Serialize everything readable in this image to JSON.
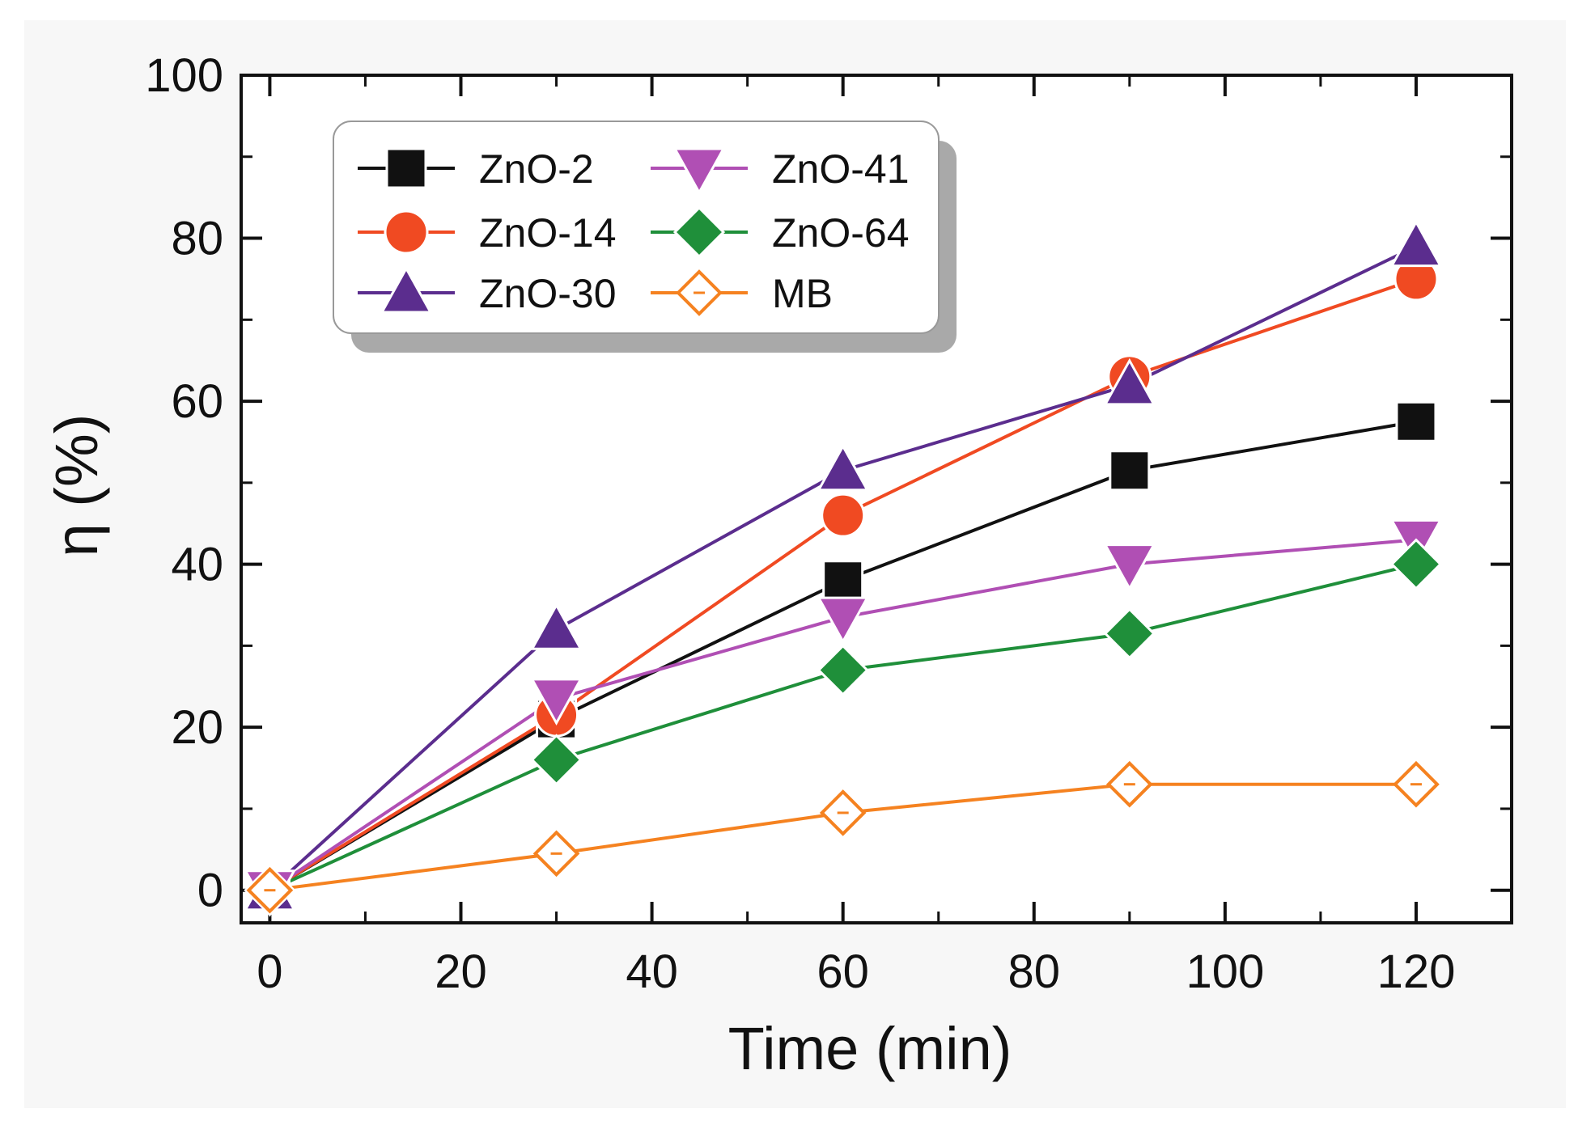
{
  "chart_data": {
    "type": "line",
    "xlabel": "Time   (min)",
    "ylabel": "η   (%)",
    "xlim": [
      -3,
      130
    ],
    "ylim": [
      -4,
      100
    ],
    "xticks": [
      0,
      20,
      40,
      60,
      80,
      100,
      120
    ],
    "yticks": [
      0,
      20,
      40,
      60,
      80,
      100
    ],
    "grid": false,
    "legend_position": "top-left",
    "x": [
      0,
      30,
      60,
      90,
      120
    ],
    "series": [
      {
        "name": "ZnO-2",
        "values": [
          0,
          21,
          38,
          51.5,
          57.5
        ],
        "color": "#111111",
        "marker": "square"
      },
      {
        "name": "ZnO-14",
        "values": [
          0,
          21.5,
          46,
          63,
          75
        ],
        "color": "#f04a22",
        "marker": "circle"
      },
      {
        "name": "ZnO-30",
        "values": [
          0,
          32,
          51.5,
          62,
          79
        ],
        "color": "#5b2d8e",
        "marker": "triangle-up"
      },
      {
        "name": "ZnO-41",
        "values": [
          0,
          23.5,
          33.5,
          40,
          43
        ],
        "color": "#b04fb4",
        "marker": "triangle-down"
      },
      {
        "name": "ZnO-64",
        "values": [
          0,
          16,
          27,
          31.5,
          40
        ],
        "color": "#1f8f3a",
        "marker": "diamond"
      },
      {
        "name": "MB",
        "values": [
          0,
          4.5,
          9.5,
          13,
          13
        ],
        "color": "#f58220",
        "marker": "diamond-open"
      }
    ]
  }
}
